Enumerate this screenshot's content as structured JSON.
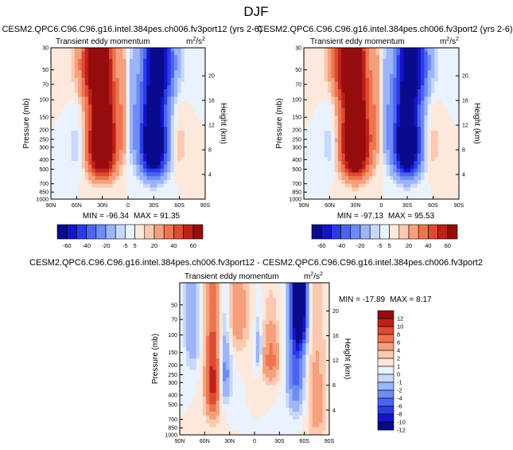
{
  "title": "DJF",
  "colors": {
    "levels60": [
      "#0a0a8c",
      "#1414c8",
      "#2a3ce6",
      "#4a64f0",
      "#6e8cf5",
      "#9cb4f8",
      "#c8d8fb",
      "#eaf2fd",
      "#fde8dc",
      "#fbc8b0",
      "#f5a07c",
      "#ee7450",
      "#dc4a30",
      "#c0201a",
      "#960d0d"
    ],
    "levels12": [
      "#0a0a8c",
      "#1414c8",
      "#2a3ce6",
      "#4a64f0",
      "#6e8cf5",
      "#9cb4f8",
      "#c8d8fb",
      "#eaf2fd",
      "#fde8dc",
      "#fbc8b0",
      "#f5a07c",
      "#ee7450",
      "#dc4a30",
      "#c0201a",
      "#960d0d"
    ]
  },
  "chart_data": [
    {
      "id": "panel1",
      "type": "heatmap",
      "title": "CESM2.QPC6.C96.C96.g16.intel.384pes.ch006.fv3port12 (yrs 2-6)",
      "subtitle_left": "Transient eddy momentum",
      "units_prefix": "m",
      "units_sup1": "2",
      "units_mid": "/s",
      "units_sup2": "2",
      "xlabel": "",
      "ylabel": "Pressure (mb)",
      "y2label": "Height (km)",
      "x_ticks": [
        "90N",
        "60N",
        "30N",
        "0",
        "30S",
        "60S",
        "90S"
      ],
      "y_ticks": [
        "30",
        "50",
        "70",
        "100",
        "150",
        "200",
        "250",
        "300",
        "400",
        "500",
        "700",
        "850",
        "1000"
      ],
      "y2_ticks": [
        "20",
        "16",
        "12",
        "8",
        "4"
      ],
      "min_label": "MIN = -96.34",
      "max_label": "MAX = 91.35",
      "min": -96.34,
      "max": 91.35,
      "features": [
        {
          "lat": 30,
          "p": 270,
          "amp": 95,
          "w": 11,
          "h": 220
        },
        {
          "lat": -30,
          "p": 270,
          "amp": -96,
          "w": 11,
          "h": 220
        },
        {
          "lat": 45,
          "p": 45,
          "amp": 30,
          "w": 12,
          "h": 40
        },
        {
          "lat": -45,
          "p": 45,
          "amp": -30,
          "w": 12,
          "h": 40
        },
        {
          "lat": 5,
          "p": 180,
          "amp": 14,
          "w": 5,
          "h": 150
        },
        {
          "lat": -5,
          "p": 180,
          "amp": -14,
          "w": 5,
          "h": 150
        },
        {
          "lat": 60,
          "p": 300,
          "amp": -8,
          "w": 6,
          "h": 200
        },
        {
          "lat": -60,
          "p": 300,
          "amp": 8,
          "w": 6,
          "h": 200
        }
      ]
    },
    {
      "id": "panel2",
      "type": "heatmap",
      "title": "CESM2.QPC6.C96.C96.g16.intel.384pes.ch006.fv3port2 (yrs 2-6)",
      "subtitle_left": "Transient eddy momentum",
      "units_prefix": "m",
      "units_sup1": "2",
      "units_mid": "/s",
      "units_sup2": "2",
      "xlabel": "",
      "ylabel": "Pressure (mb)",
      "y2label": "Height (km)",
      "x_ticks": [
        "90N",
        "60N",
        "30N",
        "0",
        "30S",
        "60S",
        "90S"
      ],
      "y_ticks": [
        "30",
        "50",
        "70",
        "100",
        "150",
        "200",
        "250",
        "300",
        "400",
        "500",
        "700",
        "850",
        "1000"
      ],
      "y2_ticks": [
        "20",
        "16",
        "12",
        "8",
        "4"
      ],
      "min_label": "MIN = -97.13",
      "max_label": "MAX = 95.53",
      "min": -97.13,
      "max": 95.53,
      "features": [
        {
          "lat": 30,
          "p": 270,
          "amp": 98,
          "w": 11,
          "h": 220
        },
        {
          "lat": -30,
          "p": 270,
          "amp": -97,
          "w": 11,
          "h": 220
        },
        {
          "lat": 45,
          "p": 45,
          "amp": 32,
          "w": 12,
          "h": 40
        },
        {
          "lat": -45,
          "p": 45,
          "amp": -30,
          "w": 12,
          "h": 40
        },
        {
          "lat": 5,
          "p": 180,
          "amp": 14,
          "w": 5,
          "h": 150
        },
        {
          "lat": -5,
          "p": 180,
          "amp": -14,
          "w": 5,
          "h": 150
        },
        {
          "lat": 60,
          "p": 300,
          "amp": -8,
          "w": 6,
          "h": 200
        },
        {
          "lat": -60,
          "p": 300,
          "amp": 8,
          "w": 6,
          "h": 200
        }
      ]
    },
    {
      "id": "panel3",
      "type": "heatmap",
      "title": "CESM2.QPC6.C96.C96.g16.intel.384pes.ch006.fv3port12 - CESM2.QPC6.C96.C96.g16.intel.384pes.ch006.fv3port2",
      "subtitle_left": "Transient eddy momentum",
      "units_prefix": "m",
      "units_sup1": "2",
      "units_mid": "/s",
      "units_sup2": "2",
      "xlabel": "",
      "ylabel": "Pressure (mb)",
      "y2label": "Height (km)",
      "x_ticks": [
        "90N",
        "60N",
        "30N",
        "0",
        "30S",
        "60S",
        "90S"
      ],
      "y_ticks": [
        "50",
        "70",
        "100",
        "150",
        "200",
        "250",
        "300",
        "400",
        "500",
        "700",
        "850",
        "1000"
      ],
      "y2_ticks": [
        "20",
        "16",
        "12",
        "8",
        "4"
      ],
      "min_label": "MIN = -17.89",
      "max_label": "MAX =   8.17",
      "min": -17.89,
      "max": 8.17,
      "features": [
        {
          "lat": 50,
          "p": 300,
          "amp": 9,
          "w": 6,
          "h": 250
        },
        {
          "lat": -55,
          "p": 40,
          "amp": -16,
          "w": 6,
          "h": 60
        },
        {
          "lat": -50,
          "p": 200,
          "amp": -7,
          "w": 7,
          "h": 250
        },
        {
          "lat": 35,
          "p": 250,
          "amp": -5,
          "w": 5,
          "h": 150
        },
        {
          "lat": -20,
          "p": 180,
          "amp": 5,
          "w": 7,
          "h": 80
        },
        {
          "lat": 20,
          "p": 60,
          "amp": 3,
          "w": 10,
          "h": 60
        },
        {
          "lat": -5,
          "p": 140,
          "amp": -4,
          "w": 3,
          "h": 50
        },
        {
          "lat": 75,
          "p": 60,
          "amp": -4,
          "w": 6,
          "h": 100
        },
        {
          "lat": -75,
          "p": 500,
          "amp": 3,
          "w": 8,
          "h": 400
        }
      ]
    }
  ],
  "colorbars": [
    {
      "id": "cb1",
      "orientation": "horizontal",
      "labels": [
        "-60",
        "-40",
        "-20",
        "-5",
        "5",
        "20",
        "40",
        "60"
      ]
    },
    {
      "id": "cb2",
      "orientation": "horizontal",
      "labels": [
        "-60",
        "-40",
        "-20",
        "-5",
        "5",
        "20",
        "40",
        "60"
      ]
    },
    {
      "id": "cb3",
      "orientation": "vertical",
      "labels": [
        "12",
        "10",
        "8",
        "6",
        "4",
        "2",
        "1",
        "0",
        "-1",
        "-2",
        "-4",
        "-6",
        "-8",
        "-10",
        "-12"
      ]
    }
  ]
}
